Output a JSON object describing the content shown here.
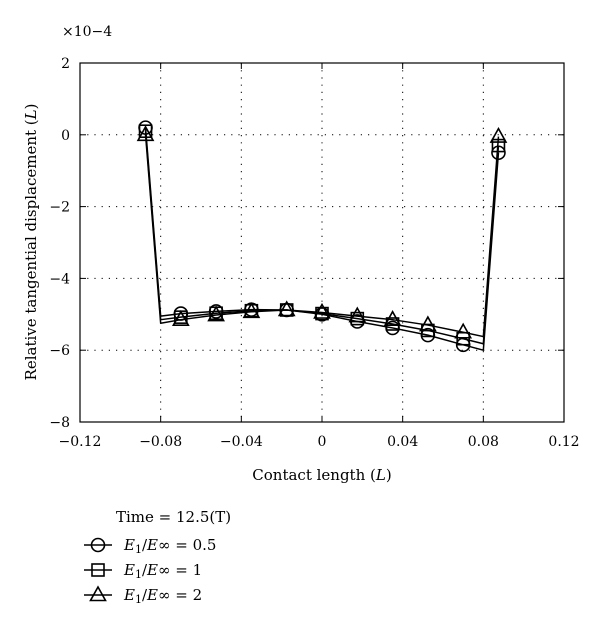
{
  "chart_data": {
    "type": "line",
    "title": "",
    "xlabel": "Contact length (L)",
    "ylabel": "Relative tangential displacement (L)",
    "multiplier": "×10−4",
    "xlim": [
      -0.12,
      0.12
    ],
    "ylim": [
      -8,
      2
    ],
    "xticks": [
      -0.12,
      -0.08,
      -0.04,
      0,
      0.04,
      0.08,
      0.12
    ],
    "xtick_labels": [
      "−0.12",
      "−0.08",
      "−0.04",
      "0",
      "0.04",
      "0.08",
      "0.12"
    ],
    "yticks": [
      -8,
      -6,
      -4,
      -2,
      0,
      2
    ],
    "ytick_labels": [
      "−8",
      "−6",
      "−4",
      "−2",
      "0",
      "2"
    ],
    "grid": true,
    "legend_title": "Time = 12.5(T)",
    "legend_position": "bottom-left",
    "series": [
      {
        "name": "E1/E∞ = 0.5",
        "marker": "circle",
        "x": [
          -0.0875,
          -0.08,
          -0.07,
          -0.0525,
          -0.035,
          -0.0175,
          0,
          0.0175,
          0.035,
          0.0525,
          0.07,
          0.08,
          0.0875
        ],
        "y": [
          0.2,
          -5.05,
          -4.98,
          -4.92,
          -4.87,
          -4.88,
          -5.0,
          -5.2,
          -5.38,
          -5.58,
          -5.85,
          -6.0,
          -0.5
        ],
        "marker_x": [
          -0.0875,
          -0.07,
          -0.0525,
          -0.035,
          -0.0175,
          0,
          0.0175,
          0.035,
          0.0525,
          0.07,
          0.0875
        ]
      },
      {
        "name": "E1/E∞ = 1",
        "marker": "square",
        "x": [
          -0.0875,
          -0.08,
          -0.07,
          -0.0525,
          -0.035,
          -0.0175,
          0,
          0.0175,
          0.035,
          0.0525,
          0.07,
          0.08,
          0.0875
        ],
        "y": [
          0.1,
          -5.15,
          -5.08,
          -4.97,
          -4.9,
          -4.88,
          -4.98,
          -5.12,
          -5.27,
          -5.45,
          -5.68,
          -5.82,
          -0.3
        ],
        "marker_x": [
          -0.0875,
          -0.07,
          -0.0525,
          -0.035,
          -0.0175,
          0,
          0.0175,
          0.035,
          0.0525,
          0.07,
          0.0875
        ]
      },
      {
        "name": "E1/E∞ = 2",
        "marker": "triangle",
        "x": [
          -0.0875,
          -0.08,
          -0.07,
          -0.0525,
          -0.035,
          -0.0175,
          0,
          0.0175,
          0.035,
          0.0525,
          0.07,
          0.08,
          0.0875
        ],
        "y": [
          0.0,
          -5.25,
          -5.15,
          -5.02,
          -4.93,
          -4.88,
          -4.95,
          -5.05,
          -5.15,
          -5.3,
          -5.5,
          -5.62,
          -0.05
        ],
        "marker_x": [
          -0.0875,
          -0.07,
          -0.0525,
          -0.035,
          -0.0175,
          0,
          0.0175,
          0.035,
          0.0525,
          0.07,
          0.0875
        ]
      }
    ]
  }
}
